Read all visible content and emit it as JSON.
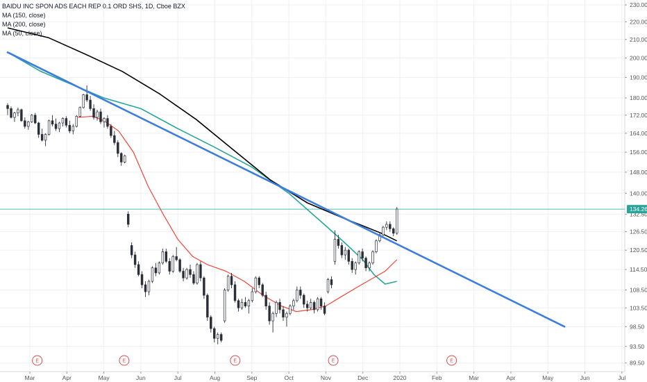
{
  "legend": {
    "title": "BAIDU INC SPON ADS EACH REP 0.1 ORD SHS, 1D, Cboe BZX",
    "ma1": "MA (150, close)",
    "ma2": "MA (200, close)",
    "ma3": "MA (50, close)"
  },
  "chart_data": {
    "type": "candlestick",
    "ylim": [
      87.5,
      233
    ],
    "y_ticks": [
      89.5,
      93.5,
      98.5,
      103.5,
      108.5,
      114.5,
      120.5,
      126.5,
      132.5,
      140.0,
      148.0,
      156.0,
      164.0,
      172.0,
      180.0,
      190.0,
      200.0,
      210.0,
      220.0,
      230.0
    ],
    "x_ticks": [
      "Mar",
      "Apr",
      "May",
      "Jun",
      "Jul",
      "Aug",
      "Sep",
      "Oct",
      "Nov",
      "Dec",
      "2020",
      "Feb",
      "Mar",
      "Apr",
      "May",
      "Jun",
      "Jul"
    ],
    "last_price": 134.26,
    "last_price_label": "134.26",
    "earnings_marker": "E",
    "earnings_month_index": [
      0.2,
      2.55,
      5.55,
      8.2,
      11.4
    ],
    "grid": true,
    "colors": {
      "up": "#26a69a",
      "down": "#ef5350",
      "candle": "#2a2e39",
      "ma150": "#26a69a",
      "ma200": "#000000",
      "ma50": "#f44336",
      "trendline": "#3d7de0",
      "price_line": "#26a69a",
      "earnings": "#e04a4a"
    },
    "candles_month_index": [
      -0.6,
      9.92
    ],
    "candles": [
      [
        176.5,
        177.5,
        172.0,
        175.0
      ],
      [
        175.0,
        176.0,
        170.5,
        171.0
      ],
      [
        171.0,
        173.5,
        169.0,
        173.0
      ],
      [
        173.0,
        175.5,
        171.5,
        174.5
      ],
      [
        174.5,
        175.0,
        169.0,
        169.5
      ],
      [
        169.5,
        171.0,
        166.0,
        167.0
      ],
      [
        167.0,
        169.5,
        165.5,
        169.0
      ],
      [
        169.0,
        172.5,
        168.5,
        172.0
      ],
      [
        172.0,
        173.0,
        168.0,
        168.5
      ],
      [
        168.5,
        169.0,
        162.0,
        163.5
      ],
      [
        163.5,
        166.0,
        160.5,
        161.0
      ],
      [
        161.0,
        164.0,
        158.5,
        163.5
      ],
      [
        163.5,
        170.0,
        163.0,
        169.5
      ],
      [
        169.5,
        172.0,
        167.0,
        168.0
      ],
      [
        168.0,
        170.5,
        165.0,
        166.0
      ],
      [
        166.0,
        169.0,
        164.5,
        168.5
      ],
      [
        168.5,
        171.0,
        167.0,
        170.5
      ],
      [
        170.5,
        171.5,
        166.5,
        167.5
      ],
      [
        167.5,
        169.5,
        164.0,
        165.0
      ],
      [
        165.0,
        168.0,
        163.5,
        167.0
      ],
      [
        167.0,
        172.0,
        166.5,
        171.5
      ],
      [
        171.5,
        176.0,
        171.0,
        175.5
      ],
      [
        175.5,
        182.0,
        175.0,
        181.5
      ],
      [
        181.5,
        186.0,
        178.0,
        179.0
      ],
      [
        179.0,
        181.0,
        174.0,
        175.0
      ],
      [
        175.0,
        177.0,
        170.0,
        171.0
      ],
      [
        171.0,
        174.5,
        169.5,
        173.5
      ],
      [
        173.5,
        175.0,
        168.0,
        169.0
      ],
      [
        169.0,
        171.0,
        166.5,
        170.5
      ],
      [
        170.5,
        172.0,
        166.0,
        167.0
      ],
      [
        167.0,
        168.0,
        162.0,
        163.0
      ],
      [
        163.0,
        165.0,
        159.0,
        160.0
      ],
      [
        160.0,
        161.0,
        154.0,
        155.5
      ],
      [
        155.5,
        156.0,
        150.5,
        152.0
      ],
      [
        152.0,
        155.0,
        151.5,
        154.5
      ],
      [
        132.5,
        133.5,
        128.0,
        129.0
      ],
      [
        122.0,
        123.0,
        118.0,
        119.0
      ],
      [
        119.0,
        120.0,
        115.0,
        116.0
      ],
      [
        116.0,
        117.0,
        112.5,
        113.0
      ],
      [
        113.0,
        114.0,
        109.0,
        110.0
      ],
      [
        110.0,
        111.0,
        106.5,
        108.0
      ],
      [
        108.0,
        111.5,
        107.0,
        111.0
      ],
      [
        111.0,
        115.5,
        110.5,
        115.0
      ],
      [
        115.0,
        116.5,
        112.5,
        113.5
      ],
      [
        113.5,
        117.0,
        113.0,
        116.5
      ],
      [
        116.5,
        121.0,
        116.0,
        120.0
      ],
      [
        120.0,
        121.0,
        116.5,
        117.0
      ],
      [
        117.0,
        118.0,
        113.0,
        114.0
      ],
      [
        114.0,
        119.0,
        113.5,
        118.5
      ],
      [
        118.5,
        121.5,
        117.0,
        117.5
      ],
      [
        117.5,
        118.0,
        113.5,
        114.0
      ],
      [
        114.0,
        115.0,
        111.0,
        112.0
      ],
      [
        112.0,
        115.0,
        111.5,
        114.5
      ],
      [
        114.5,
        116.0,
        112.0,
        113.0
      ],
      [
        113.0,
        114.0,
        110.0,
        110.5
      ],
      [
        110.5,
        116.5,
        110.0,
        116.0
      ],
      [
        116.0,
        117.0,
        111.0,
        112.0
      ],
      [
        112.0,
        112.5,
        106.0,
        107.0
      ],
      [
        107.0,
        107.5,
        100.0,
        101.0
      ],
      [
        101.0,
        101.5,
        97.0,
        98.0
      ],
      [
        98.0,
        98.5,
        94.5,
        95.5
      ],
      [
        95.5,
        97.0,
        94.0,
        96.5
      ],
      [
        96.5,
        97.0,
        94.5,
        95.0
      ],
      [
        100.0,
        109.0,
        99.5,
        108.5
      ],
      [
        108.5,
        113.0,
        108.0,
        112.5
      ],
      [
        112.5,
        113.5,
        109.0,
        110.0
      ],
      [
        110.0,
        111.0,
        105.0,
        105.5
      ],
      [
        105.5,
        106.0,
        102.5,
        103.5
      ],
      [
        103.5,
        106.0,
        103.0,
        105.0
      ],
      [
        105.0,
        106.5,
        103.5,
        104.0
      ],
      [
        104.0,
        106.0,
        102.0,
        105.5
      ],
      [
        105.5,
        109.0,
        105.0,
        108.0
      ],
      [
        108.0,
        112.5,
        107.5,
        112.0
      ],
      [
        112.0,
        112.5,
        109.0,
        110.0
      ],
      [
        110.0,
        110.5,
        106.5,
        107.0
      ],
      [
        107.0,
        108.0,
        103.0,
        104.0
      ],
      [
        104.0,
        105.0,
        99.0,
        100.0
      ],
      [
        100.0,
        102.5,
        97.0,
        102.0
      ],
      [
        102.0,
        105.5,
        101.0,
        105.0
      ],
      [
        105.0,
        106.0,
        102.0,
        103.0
      ],
      [
        103.0,
        104.0,
        100.0,
        101.0
      ],
      [
        101.0,
        102.5,
        98.5,
        102.0
      ],
      [
        102.0,
        104.5,
        101.5,
        104.0
      ],
      [
        104.0,
        106.0,
        103.0,
        105.5
      ],
      [
        105.5,
        109.5,
        105.0,
        108.5
      ],
      [
        108.5,
        109.5,
        106.0,
        107.0
      ],
      [
        107.0,
        107.5,
        103.5,
        104.5
      ],
      [
        104.5,
        105.5,
        102.5,
        103.5
      ],
      [
        103.5,
        106.0,
        103.0,
        105.0
      ],
      [
        105.0,
        105.5,
        102.0,
        103.0
      ],
      [
        103.0,
        106.5,
        102.5,
        106.0
      ],
      [
        106.0,
        106.5,
        103.0,
        104.0
      ],
      [
        104.0,
        105.0,
        101.5,
        102.0
      ],
      [
        108.0,
        112.0,
        107.5,
        111.5
      ],
      [
        111.5,
        112.5,
        109.0,
        110.0
      ],
      [
        117.0,
        127.0,
        116.0,
        124.0
      ],
      [
        124.0,
        125.5,
        121.0,
        122.0
      ],
      [
        122.0,
        123.0,
        118.0,
        119.0
      ],
      [
        119.0,
        121.5,
        117.5,
        120.5
      ],
      [
        120.5,
        121.0,
        116.0,
        117.0
      ],
      [
        117.0,
        118.0,
        113.5,
        114.5
      ],
      [
        114.5,
        117.0,
        113.0,
        116.5
      ],
      [
        116.5,
        120.5,
        116.0,
        120.0
      ],
      [
        120.0,
        121.0,
        117.0,
        118.0
      ],
      [
        118.0,
        118.5,
        114.0,
        115.0
      ],
      [
        115.0,
        117.0,
        114.0,
        116.5
      ],
      [
        116.5,
        120.5,
        116.0,
        120.0
      ],
      [
        120.0,
        124.0,
        119.5,
        123.5
      ],
      [
        123.5,
        126.0,
        123.0,
        125.5
      ],
      [
        125.5,
        128.5,
        125.0,
        128.0
      ],
      [
        128.0,
        130.0,
        127.0,
        129.0
      ],
      [
        129.0,
        130.0,
        126.5,
        127.5
      ],
      [
        127.5,
        128.0,
        125.0,
        126.0
      ],
      [
        126.0,
        135.0,
        125.5,
        134.3
      ]
    ],
    "ma150": {
      "x_month_index": [
        -0.6,
        0.3,
        1.2,
        2.0,
        3.0,
        4.0,
        5.0,
        6.0,
        7.0,
        8.0,
        8.5,
        9.0,
        9.3,
        9.6,
        9.92
      ],
      "values": [
        203.0,
        193.0,
        186.0,
        180.0,
        175.0,
        166.0,
        158.0,
        150.0,
        140.0,
        128.5,
        123.0,
        117.5,
        113.0,
        110.2,
        111.0
      ]
    },
    "ma200": {
      "x_month_index": [
        -0.6,
        0.5,
        1.5,
        2.5,
        3.5,
        4.5,
        5.5,
        6.5,
        7.5,
        8.5,
        9.0,
        9.5,
        9.92
      ],
      "values": [
        216.5,
        211.0,
        202.0,
        193.0,
        182.0,
        170.0,
        157.0,
        145.0,
        136.5,
        131.0,
        128.5,
        126.0,
        123.5
      ]
    },
    "ma50": {
      "x_month_index": [
        1.3,
        1.7,
        2.0,
        2.4,
        2.8,
        3.2,
        3.6,
        4.0,
        4.4,
        4.8,
        5.3,
        5.8,
        6.3,
        6.8,
        7.2,
        7.6,
        8.0,
        8.4,
        8.8,
        9.2,
        9.6,
        9.92
      ],
      "values": [
        171.0,
        171.5,
        169.5,
        165.0,
        156.0,
        142.5,
        132.5,
        124.0,
        118.5,
        116.0,
        114.0,
        111.0,
        107.0,
        104.0,
        102.5,
        103.0,
        104.0,
        106.5,
        109.0,
        111.5,
        114.0,
        117.5
      ]
    },
    "trendline": {
      "x_month_index": [
        -0.6,
        14.45
      ],
      "values": [
        203.0,
        98.5
      ]
    }
  }
}
